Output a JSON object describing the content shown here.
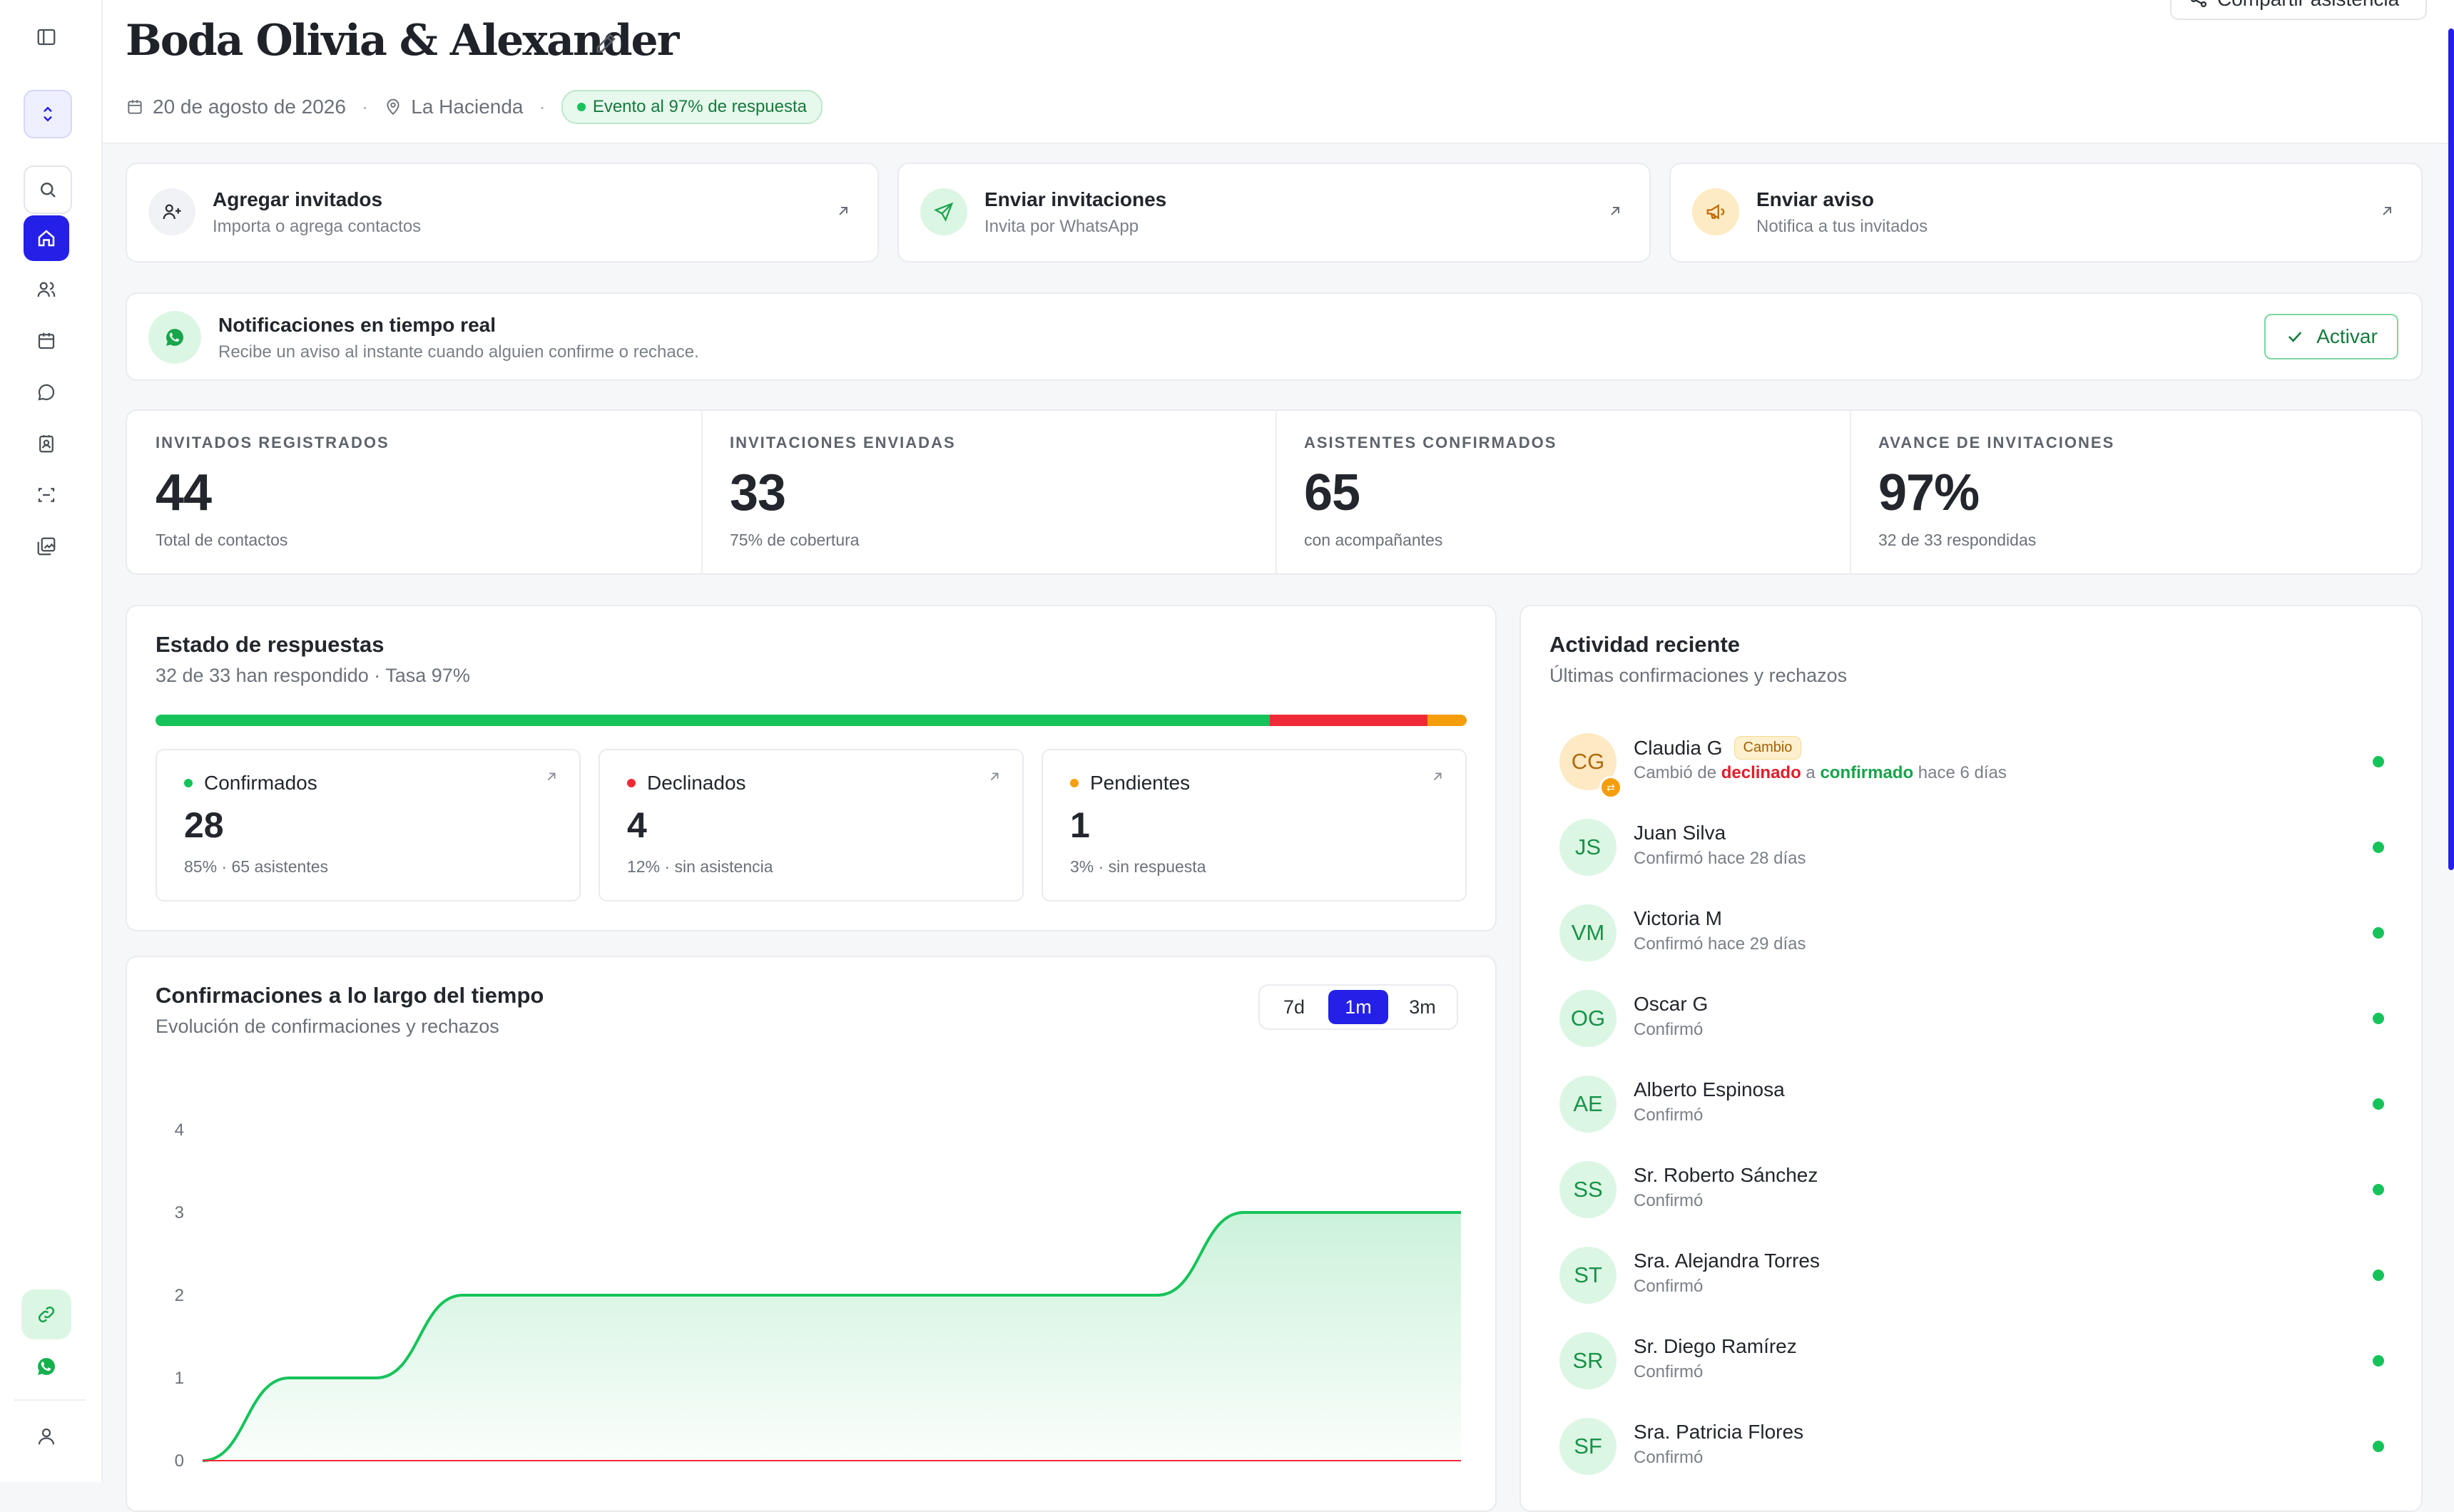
{
  "event": {
    "title": "Boda Olivia & Alexander",
    "date": "20 de agosto de 2026",
    "location": "La Hacienda",
    "badge": "Evento al 97% de respuesta",
    "share_label": "Compartir asistencia"
  },
  "quick_actions": [
    {
      "title": "Agregar invitados",
      "subtitle": "Importa o agrega contactos",
      "icon": "add-user-icon"
    },
    {
      "title": "Enviar invitaciones",
      "subtitle": "Invita por WhatsApp",
      "icon": "send-icon"
    },
    {
      "title": "Enviar aviso",
      "subtitle": "Notifica a tus invitados",
      "icon": "megaphone-icon"
    }
  ],
  "notifications": {
    "title": "Notificaciones en tiempo real",
    "subtitle": "Recibe un aviso al instante cuando alguien confirme o rechace.",
    "button": "Activar"
  },
  "stats": [
    {
      "label": "INVITADOS REGISTRADOS",
      "value": "44",
      "sub": "Total de contactos"
    },
    {
      "label": "INVITACIONES ENVIADAS",
      "value": "33",
      "sub": "75% de cobertura"
    },
    {
      "label": "ASISTENTES CONFIRMADOS",
      "value": "65",
      "sub": "con acompañantes"
    },
    {
      "label": "AVANCE DE INVITACIONES",
      "value": "97%",
      "sub": "32 de 33 respondidas"
    }
  ],
  "responses": {
    "title": "Estado de respuestas",
    "subtitle": "32 de 33 han respondido · Tasa 97%",
    "bar_fractions": {
      "confirmed": 0.85,
      "declined": 0.12,
      "pending": 0.03
    },
    "cards": [
      {
        "label": "Confirmados",
        "value": "28",
        "sub": "85% · 65 asistentes",
        "color": "#16c35a"
      },
      {
        "label": "Declinados",
        "value": "4",
        "sub": "12% · sin asistencia",
        "color": "#ef2a36"
      },
      {
        "label": "Pendientes",
        "value": "1",
        "sub": "3% · sin respuesta",
        "color": "#f59e0b"
      }
    ]
  },
  "timeline": {
    "title": "Confirmaciones a lo largo del tiempo",
    "subtitle": "Evolución de confirmaciones y rechazos",
    "ranges": [
      "7d",
      "1m",
      "3m"
    ],
    "selected_range": "1m"
  },
  "chart_data": {
    "type": "line",
    "title": "",
    "xlabel": "",
    "ylabel": "",
    "ylim": [
      0,
      4
    ],
    "yticks": [
      "0",
      "1",
      "2",
      "3",
      "4"
    ],
    "x": [
      0,
      2,
      4,
      6,
      8,
      10,
      12,
      14,
      16,
      18,
      20,
      22,
      24,
      26,
      28,
      29
    ],
    "xlim": [
      0,
      29
    ],
    "series": [
      {
        "values": [
          0,
          1,
          1,
          2,
          2,
          2,
          2,
          2,
          2,
          2,
          2,
          2,
          3,
          3,
          3,
          3
        ],
        "color": "#16c35a"
      },
      {
        "values": [
          0,
          0,
          0,
          0,
          0,
          0,
          0,
          0,
          0,
          0,
          0,
          0,
          0,
          0,
          0,
          0
        ],
        "color": "#ef2a36"
      }
    ]
  },
  "activity": {
    "title": "Actividad reciente",
    "subtitle": "Últimas confirmaciones y rechazos",
    "items": [
      {
        "initials": "CG",
        "name": "Claudia G",
        "tag": "Cambio",
        "desc_pre": "Cambió de ",
        "desc_from": "declinado",
        "desc_mid": " a ",
        "desc_to": "confirmado",
        "desc_post": " hace 6 días"
      },
      {
        "initials": "JS",
        "name": "Juan Silva",
        "desc": "Confirmó hace 28 días"
      },
      {
        "initials": "VM",
        "name": "Victoria M",
        "desc": "Confirmó hace 29 días"
      },
      {
        "initials": "OG",
        "name": "Oscar G",
        "desc": "Confirmó"
      },
      {
        "initials": "AE",
        "name": "Alberto Espinosa",
        "desc": "Confirmó"
      },
      {
        "initials": "SS",
        "name": "Sr. Roberto Sánchez",
        "desc": "Confirmó"
      },
      {
        "initials": "ST",
        "name": "Sra. Alejandra Torres",
        "desc": "Confirmó"
      },
      {
        "initials": "SR",
        "name": "Sr. Diego Ramírez",
        "desc": "Confirmó"
      },
      {
        "initials": "SF",
        "name": "Sra. Patricia Flores",
        "desc": "Confirmó"
      }
    ]
  }
}
